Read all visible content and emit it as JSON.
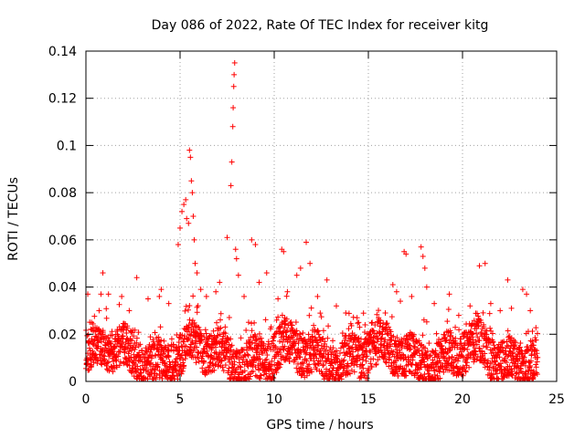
{
  "chart_data": {
    "type": "scatter",
    "title": "Day 086 of 2022, Rate Of TEC Index for receiver kitg",
    "xlabel": "GPS time / hours",
    "ylabel": "ROTI / TECUs",
    "xlim": [
      0,
      25
    ],
    "ylim": [
      0,
      0.14
    ],
    "x_ticks": [
      0,
      5,
      10,
      15,
      20,
      25
    ],
    "x_tick_labels": [
      "0",
      "5",
      "10",
      "15",
      "20",
      "25"
    ],
    "y_ticks": [
      0,
      0.02,
      0.04,
      0.06,
      0.08,
      0.1,
      0.12,
      0.14
    ],
    "y_tick_labels": [
      "0",
      "0.02",
      "0.04",
      "0.06",
      "0.08",
      "0.1",
      "0.12",
      "0.14"
    ],
    "grid": true,
    "marker": "+",
    "color": "#ff0000",
    "series": [
      {
        "name": "ROTI",
        "points": [
          [
            0.1,
            0.037
          ],
          [
            0.3,
            0.025
          ],
          [
            0.5,
            0.021
          ],
          [
            0.7,
            0.03
          ],
          [
            0.8,
            0.037
          ],
          [
            0.9,
            0.046
          ],
          [
            1.2,
            0.037
          ],
          [
            1.9,
            0.036
          ],
          [
            2.3,
            0.03
          ],
          [
            2.7,
            0.044
          ],
          [
            3.3,
            0.035
          ],
          [
            3.9,
            0.036
          ],
          [
            4.0,
            0.039
          ],
          [
            4.4,
            0.033
          ],
          [
            4.9,
            0.058
          ],
          [
            5.0,
            0.065
          ],
          [
            5.1,
            0.072
          ],
          [
            5.2,
            0.075
          ],
          [
            5.3,
            0.077
          ],
          [
            5.35,
            0.069
          ],
          [
            5.45,
            0.067
          ],
          [
            5.5,
            0.098
          ],
          [
            5.55,
            0.095
          ],
          [
            5.6,
            0.085
          ],
          [
            5.65,
            0.08
          ],
          [
            5.7,
            0.07
          ],
          [
            5.75,
            0.06
          ],
          [
            5.8,
            0.05
          ],
          [
            5.9,
            0.046
          ],
          [
            6.1,
            0.039
          ],
          [
            6.4,
            0.036
          ],
          [
            6.9,
            0.038
          ],
          [
            7.1,
            0.042
          ],
          [
            7.5,
            0.061
          ],
          [
            7.7,
            0.083
          ],
          [
            7.75,
            0.093
          ],
          [
            7.8,
            0.108
          ],
          [
            7.82,
            0.116
          ],
          [
            7.85,
            0.125
          ],
          [
            7.87,
            0.13
          ],
          [
            7.9,
            0.135
          ],
          [
            7.95,
            0.056
          ],
          [
            8.0,
            0.052
          ],
          [
            8.1,
            0.045
          ],
          [
            8.4,
            0.036
          ],
          [
            8.8,
            0.06
          ],
          [
            9.0,
            0.058
          ],
          [
            9.2,
            0.042
          ],
          [
            9.6,
            0.046
          ],
          [
            10.2,
            0.035
          ],
          [
            10.4,
            0.056
          ],
          [
            10.5,
            0.055
          ],
          [
            10.7,
            0.038
          ],
          [
            11.2,
            0.045
          ],
          [
            11.4,
            0.048
          ],
          [
            11.7,
            0.059
          ],
          [
            11.9,
            0.05
          ],
          [
            12.3,
            0.036
          ],
          [
            12.8,
            0.043
          ],
          [
            13.3,
            0.032
          ],
          [
            13.8,
            0.029
          ],
          [
            14.4,
            0.027
          ],
          [
            15.2,
            0.025
          ],
          [
            15.9,
            0.029
          ],
          [
            16.3,
            0.041
          ],
          [
            16.5,
            0.038
          ],
          [
            16.7,
            0.034
          ],
          [
            16.9,
            0.055
          ],
          [
            17.0,
            0.054
          ],
          [
            17.3,
            0.036
          ],
          [
            17.8,
            0.057
          ],
          [
            17.9,
            0.053
          ],
          [
            18.0,
            0.048
          ],
          [
            18.1,
            0.04
          ],
          [
            18.5,
            0.033
          ],
          [
            19.3,
            0.037
          ],
          [
            19.8,
            0.028
          ],
          [
            20.4,
            0.032
          ],
          [
            20.9,
            0.049
          ],
          [
            21.2,
            0.05
          ],
          [
            21.5,
            0.033
          ],
          [
            22.0,
            0.03
          ],
          [
            22.4,
            0.043
          ],
          [
            22.6,
            0.031
          ],
          [
            23.2,
            0.039
          ],
          [
            23.4,
            0.037
          ],
          [
            23.6,
            0.03
          ]
        ]
      }
    ]
  }
}
